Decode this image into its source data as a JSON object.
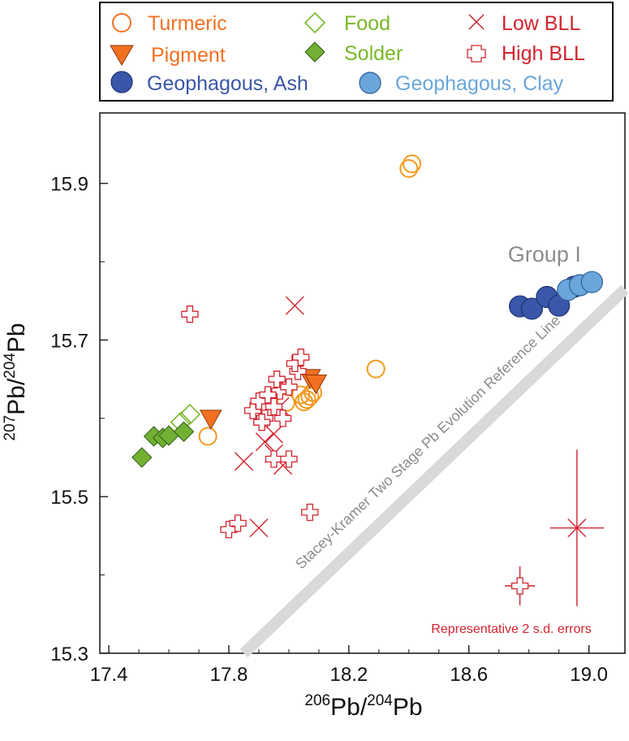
{
  "colors": {
    "turmeric": "#f37021",
    "pigment": "#f37021",
    "food": "#7ab828",
    "solder": "#7ab828",
    "solder_fill": "#72b034",
    "low_bll": "#d1232f",
    "high_bll": "#d1232f",
    "ash_fill": "#3a56a8",
    "ash_stroke": "#1f3478",
    "clay_fill": "#6aa6dc",
    "clay_stroke": "#2f5f97",
    "reference_line": "#d9d9d9",
    "group_label": "#8c8c8c",
    "turmeric_alt": "#f39a1e"
  },
  "chart_data": {
    "type": "scatter",
    "xlabel": {
      "sup1": "206",
      "base1": "Pb/",
      "sup2": "204",
      "base2": "Pb"
    },
    "ylabel": {
      "sup1": "207",
      "base1": "Pb/",
      "sup2": "204",
      "base2": "Pb"
    },
    "xlim": [
      17.37,
      19.12
    ],
    "ylim": [
      15.3,
      15.99
    ],
    "xticks": [
      17.4,
      17.8,
      18.2,
      18.6,
      19.0
    ],
    "xtick_labels": [
      "17.4",
      "17.8",
      "18.2",
      "18.6",
      "19.0"
    ],
    "yticks": [
      15.3,
      15.5,
      15.7,
      15.9
    ],
    "ytick_labels": [
      "15.3",
      "15.5",
      "15.7",
      "15.9"
    ],
    "legend": [
      {
        "key": "turmeric",
        "label": "Turmeric",
        "marker": "open-circle"
      },
      {
        "key": "food",
        "label": "Food",
        "marker": "open-diamond"
      },
      {
        "key": "low_bll",
        "label": "Low BLL",
        "marker": "x"
      },
      {
        "key": "pigment",
        "label": "Pigment",
        "marker": "triangle-down"
      },
      {
        "key": "solder",
        "label": "Solder",
        "marker": "diamond"
      },
      {
        "key": "high_bll",
        "label": "High BLL",
        "marker": "open-cross"
      },
      {
        "key": "ash",
        "label": "Geophagous, Ash",
        "marker": "filled-circle"
      },
      {
        "key": "clay",
        "label": "Geophagous, Clay",
        "marker": "filled-circle"
      }
    ],
    "series": [
      {
        "name": "Turmeric",
        "marker": "open-circle",
        "points": [
          [
            18.4,
            15.919
          ],
          [
            18.41,
            15.925
          ],
          [
            18.29,
            15.663
          ],
          [
            17.73,
            15.577
          ],
          [
            17.99,
            15.62
          ],
          [
            18.04,
            15.63
          ],
          [
            18.06,
            15.624
          ],
          [
            18.07,
            15.628
          ],
          [
            18.08,
            15.633
          ],
          [
            18.05,
            15.621
          ]
        ]
      },
      {
        "name": "Food",
        "marker": "open-diamond",
        "points": [
          [
            17.67,
            15.605
          ],
          [
            17.64,
            15.595
          ]
        ]
      },
      {
        "name": "Low BLL",
        "marker": "x",
        "points": [
          [
            18.02,
            15.744
          ],
          [
            17.85,
            15.545
          ],
          [
            17.9,
            15.46
          ],
          [
            17.92,
            15.57
          ],
          [
            17.95,
            15.555
          ],
          [
            17.98,
            15.54
          ],
          [
            17.95,
            15.58
          ],
          [
            17.97,
            15.615
          ]
        ]
      },
      {
        "name": "Pigment",
        "marker": "triangle-down",
        "points": [
          [
            17.74,
            15.6
          ],
          [
            18.07,
            15.652
          ],
          [
            18.09,
            15.645
          ]
        ]
      },
      {
        "name": "Solder",
        "marker": "diamond",
        "points": [
          [
            17.51,
            15.55
          ],
          [
            17.55,
            15.577
          ],
          [
            17.58,
            15.575
          ],
          [
            17.6,
            15.578
          ],
          [
            17.65,
            15.583
          ]
        ]
      },
      {
        "name": "High BLL",
        "marker": "open-cross",
        "points": [
          [
            17.67,
            15.733
          ],
          [
            17.8,
            15.458
          ],
          [
            17.83,
            15.466
          ],
          [
            17.88,
            15.61
          ],
          [
            17.9,
            15.622
          ],
          [
            17.92,
            15.6
          ],
          [
            17.95,
            15.615
          ],
          [
            17.97,
            15.635
          ],
          [
            18.0,
            15.64
          ],
          [
            17.96,
            15.65
          ],
          [
            18.03,
            15.66
          ],
          [
            18.02,
            15.67
          ],
          [
            18.04,
            15.678
          ],
          [
            17.93,
            15.63
          ],
          [
            17.98,
            15.6
          ],
          [
            17.95,
            15.548
          ],
          [
            18.0,
            15.548
          ],
          [
            18.07,
            15.48
          ],
          [
            17.91,
            15.595
          ]
        ]
      },
      {
        "name": "Geophagous, Ash",
        "marker": "filled-circle",
        "points": [
          [
            18.77,
            15.743
          ],
          [
            18.81,
            15.74
          ],
          [
            18.86,
            15.755
          ],
          [
            18.9,
            15.744
          ],
          [
            18.95,
            15.768
          ]
        ]
      },
      {
        "name": "Geophagous, Clay",
        "marker": "filled-circle",
        "points": [
          [
            18.93,
            15.764
          ],
          [
            18.97,
            15.77
          ],
          [
            19.01,
            15.774
          ]
        ]
      }
    ],
    "reference_line": {
      "label": "Stacey-Kramer Two Stage Pb Evolution Reference Line",
      "from": [
        17.85,
        15.3
      ],
      "to": [
        19.12,
        15.765
      ]
    },
    "group_label": {
      "text": "Group I",
      "x": 18.73,
      "y": 15.8
    },
    "error_bars": {
      "label": "Representative 2 s.d. errors",
      "samples": [
        {
          "marker": "open-cross",
          "x": 18.77,
          "y": 15.386,
          "xerr": 0.05,
          "yerr": 0.025
        },
        {
          "marker": "x",
          "x": 18.96,
          "y": 15.46,
          "xerr": 0.09,
          "yerr": 0.1
        }
      ]
    }
  }
}
